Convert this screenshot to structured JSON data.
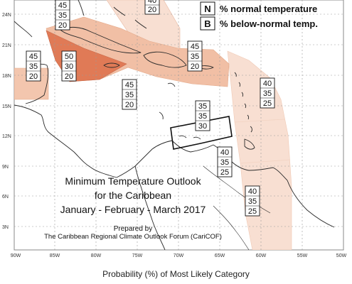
{
  "legend": [
    {
      "key": "N",
      "text": "% normal temperature"
    },
    {
      "key": "B",
      "text": "% below-normal temp."
    }
  ],
  "top_box_partial": [
    "40",
    "20"
  ],
  "probability_boxes": [
    [
      "45",
      "35",
      "20"
    ],
    [
      "45",
      "35",
      "20"
    ],
    [
      "50",
      "30",
      "20"
    ],
    [
      "45",
      "35",
      "20"
    ],
    [
      "45",
      "35",
      "20"
    ],
    [
      "40",
      "35",
      "25"
    ],
    [
      "35",
      "35",
      "30"
    ],
    [
      "40",
      "35",
      "25"
    ],
    [
      "40",
      "35",
      "25"
    ]
  ],
  "lat_labels": [
    "24N",
    "21N",
    "18N",
    "15N",
    "12N",
    "9N",
    "6N",
    "3N"
  ],
  "lon_labels": [
    "90W",
    "85W",
    "80W",
    "75W",
    "70W",
    "65W",
    "60W",
    "55W",
    "50W"
  ],
  "title": {
    "line1": "Minimum Temperature Outlook",
    "line2": "for the Caribbean",
    "line3": "January - February - March 2017"
  },
  "credit": {
    "line1": "Prepared by",
    "line2": "The Caribbean Regional Climate Outlook Forum (CariCOF)"
  },
  "caption": "Probability (%) of Most Likely Category",
  "colors": {
    "light": "#f8dfd2",
    "medium": "#f1bfa5",
    "strong": "#e79373",
    "deep": "#e07a56"
  }
}
